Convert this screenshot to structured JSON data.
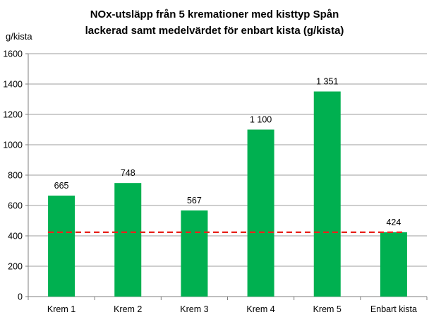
{
  "chart_data": {
    "type": "bar",
    "title": "NOx-utsläpp från 5 kremationer med kisttyp Spån lackerad samt medelvärdet för enbart kista (g/kista)",
    "title_lines": [
      "NOx-utsläpp från 5 kremationer med kisttyp Spån",
      "lackerad samt medelvärdet för enbart kista (g/kista)"
    ],
    "ylabel": "g/kista",
    "xlabel": "",
    "categories": [
      "Krem 1",
      "Krem 2",
      "Krem 3",
      "Krem 4",
      "Krem 5",
      "Enbart kista"
    ],
    "values": [
      665,
      748,
      567,
      1100,
      1351,
      424
    ],
    "data_labels": [
      "665",
      "748",
      "567",
      "1 100",
      "1 351",
      "424"
    ],
    "ylim": [
      0,
      1600
    ],
    "yticks": [
      0,
      200,
      400,
      600,
      800,
      1000,
      1200,
      1400,
      1600
    ],
    "reference_line": {
      "value": 424,
      "style": "dashed",
      "color": "#e8231c"
    },
    "grid": true,
    "legend": "none",
    "colors": {
      "bar": "#00b050",
      "grid": "#9e9e9e",
      "axis": "#7f7f7f",
      "text": "#000000"
    }
  }
}
